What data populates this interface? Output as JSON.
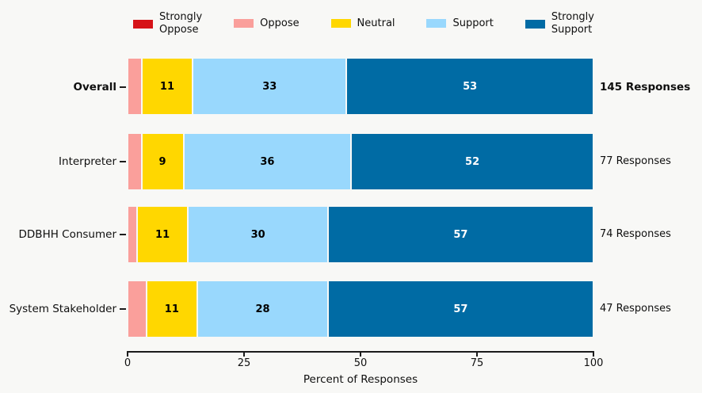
{
  "chart_data": {
    "type": "bar",
    "orientation": "horizontal",
    "stacked": true,
    "xlabel": "Percent of Responses",
    "xlim": [
      0,
      100
    ],
    "xticks": [
      "0",
      "25",
      "50",
      "75",
      "100"
    ],
    "legend_position": "top",
    "grid": false,
    "colors": {
      "strongly_oppose": "#d61318",
      "oppose": "#fa9f9b",
      "neutral": "#ffd700",
      "support": "#99d8fd",
      "strongly_support": "#006ba4"
    },
    "legend": [
      {
        "label": "Strongly\nOppose"
      },
      {
        "label": "Oppose"
      },
      {
        "label": "Neutral"
      },
      {
        "label": "Support"
      },
      {
        "label": "Strongly\nSupport"
      }
    ],
    "categories": [
      "Overall",
      "Interpreter",
      "DDBHH Consumer",
      "System Stakeholder"
    ],
    "rows": [
      {
        "label": "Overall",
        "responses_label": "145 Responses",
        "values": {
          "strongly_oppose": 0,
          "oppose": 3,
          "neutral": 11,
          "support": 33,
          "strongly_support": 53
        },
        "segment_labels": {
          "neutral": "11",
          "support": "33",
          "strongly_support": "53"
        }
      },
      {
        "label": "Interpreter",
        "responses_label": "77 Responses",
        "values": {
          "strongly_oppose": 0,
          "oppose": 3,
          "neutral": 9,
          "support": 36,
          "strongly_support": 52
        },
        "segment_labels": {
          "neutral": "9",
          "support": "36",
          "strongly_support": "52"
        }
      },
      {
        "label": "DDBHH Consumer",
        "responses_label": "74 Responses",
        "values": {
          "strongly_oppose": 0,
          "oppose": 2,
          "neutral": 11,
          "support": 30,
          "strongly_support": 57
        },
        "segment_labels": {
          "neutral": "11",
          "support": "30",
          "strongly_support": "57"
        }
      },
      {
        "label": "System Stakeholder",
        "responses_label": "47 Responses",
        "values": {
          "strongly_oppose": 0,
          "oppose": 4,
          "neutral": 11,
          "support": 28,
          "strongly_support": 57
        },
        "segment_labels": {
          "neutral": "11",
          "support": "28",
          "strongly_support": "57"
        }
      }
    ]
  }
}
